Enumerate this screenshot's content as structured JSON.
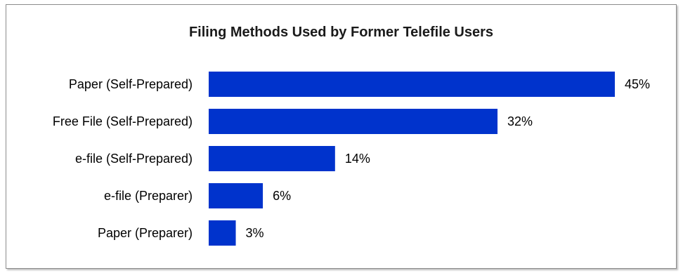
{
  "chart_data": {
    "type": "bar",
    "orientation": "horizontal",
    "title": "Filing Methods Used by Former Telefile Users",
    "categories": [
      "Paper (Self-Prepared)",
      "Free File (Self-Prepared)",
      "e-file (Self-Prepared)",
      "e-file (Preparer)",
      "Paper (Preparer)"
    ],
    "values": [
      45,
      32,
      14,
      6,
      3
    ],
    "value_labels": [
      "45%",
      "32%",
      "14%",
      "6%",
      "3%"
    ],
    "unit": "%",
    "xlim": [
      0,
      45
    ],
    "grid": false,
    "legend": "none",
    "bar_color": "#0033cc"
  }
}
